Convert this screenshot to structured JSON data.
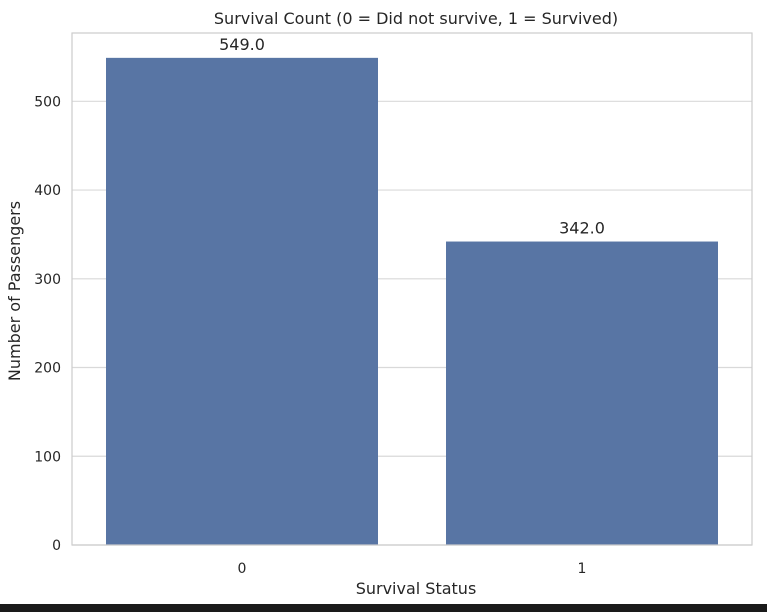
{
  "chart_data": {
    "type": "bar",
    "title": "Survival Count (0 = Did not survive, 1 = Survived)",
    "xlabel": "Survival Status",
    "ylabel": "Number of Passengers",
    "categories": [
      "0",
      "1"
    ],
    "values": [
      549,
      342
    ],
    "value_labels": [
      "549.0",
      "342.0"
    ],
    "ylim": [
      0,
      577
    ],
    "yticks": [
      0,
      100,
      200,
      300,
      400,
      500
    ],
    "grid": true,
    "bar_color": "#5875a4"
  },
  "colors": {
    "grid": "#d9d9d9",
    "frame": "#cccccc",
    "text": "#262626"
  }
}
